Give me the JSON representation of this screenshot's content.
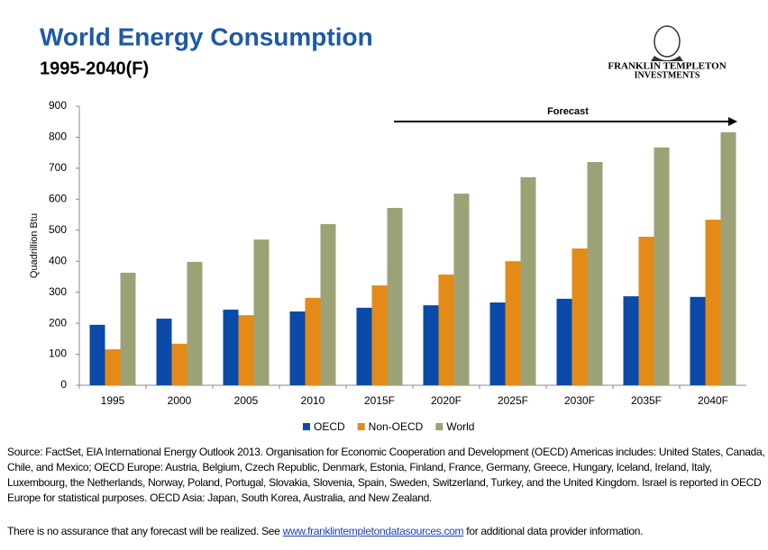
{
  "header": {
    "title": "World Energy Consumption",
    "subtitle": "1995-2040(F)",
    "logo_line1": "FRANKLIN TEMPLETON",
    "logo_line2": "INVESTMENTS"
  },
  "chart_data": {
    "type": "bar",
    "y_label": "Quadrillion Btu",
    "annotation": "Forecast",
    "categories": [
      "1995",
      "2000",
      "2005",
      "2010",
      "2015F",
      "2020F",
      "2025F",
      "2030F",
      "2035F",
      "2040F"
    ],
    "series": [
      {
        "name": "OECD",
        "color": "#0b4aa8",
        "values": [
          195,
          215,
          244,
          238,
          250,
          258,
          267,
          279,
          287,
          285
        ]
      },
      {
        "name": "Non-OECD",
        "color": "#e68a17",
        "values": [
          116,
          134,
          226,
          282,
          322,
          357,
          400,
          441,
          479,
          534
        ]
      },
      {
        "name": "World",
        "color": "#9ca276",
        "values": [
          363,
          398,
          470,
          520,
          572,
          618,
          671,
          720,
          767,
          816
        ]
      }
    ],
    "ylim": [
      0,
      900
    ],
    "yticks": [
      0,
      100,
      200,
      300,
      400,
      500,
      600,
      700,
      800,
      900
    ],
    "grid": false
  },
  "footer": {
    "source": "Source: FactSet, EIA International Energy Outlook 2013. Organisation for Economic Cooperation and Development (OECD) Americas includes: United States, Canada, Chile, and Mexico; OECD Europe: Austria, Belgium, Czech Republic, Denmark, Estonia, Finland, France, Germany, Greece, Hungary, Iceland, Ireland, Italy,  Luxembourg, the Netherlands, Norway, Poland, Portugal, Slovakia, Slovenia, Spain, Sweden, Switzerland, Turkey, and the United Kingdom. Israel is reported in OECD Europe for statistical purposes. OECD Asia: Japan, South Korea, Australia, and New Zealand.",
    "disclaimer": "There is no assurance that any forecast will be realized.  See",
    "link": "www.franklintempletondatasources.com",
    "disclaimer_end": "for additional data provider information."
  }
}
